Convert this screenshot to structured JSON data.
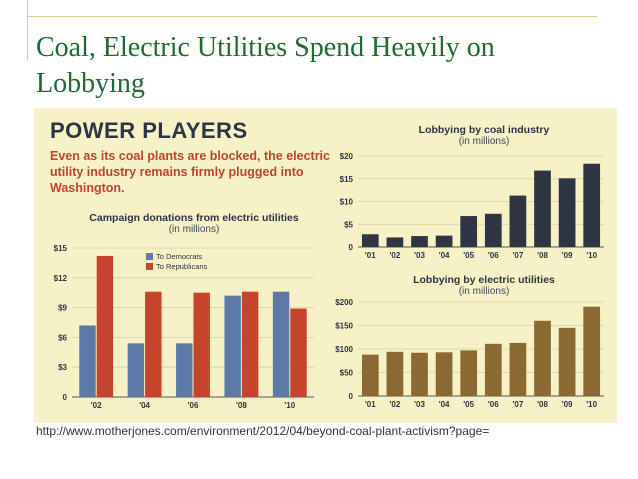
{
  "slide": {
    "title": "Coal, Electric Utilities Spend Heavily on Lobbying",
    "source_url": "http://www.motherjones.com/environment/2012/04/beyond-coal-plant-activism?page="
  },
  "infographic": {
    "headline": "POWER PLAYERS",
    "deck": "Even as its coal plants are blocked, the electric utility industry remains firmly plugged into Washington."
  },
  "colors": {
    "democrats": "#5d7aa6",
    "republicans": "#c7442c",
    "coal": "#2f3542",
    "utilities": "#8a6a32",
    "panel_bg": "#f6f1c6"
  },
  "chart_data": [
    {
      "type": "bar",
      "title": "Campaign donations from electric utilities",
      "subtitle": "(in millions)",
      "categories": [
        "'02",
        "'04",
        "'06",
        "'08",
        "'10"
      ],
      "series": [
        {
          "name": "To Democrats",
          "values": [
            7.2,
            5.4,
            5.4,
            10.2,
            10.6
          ]
        },
        {
          "name": "To Republicans",
          "values": [
            14.2,
            10.6,
            10.5,
            10.6,
            8.9
          ]
        }
      ],
      "yticks": [
        "0",
        "$3",
        "$6",
        "$9",
        "$12",
        "$15"
      ],
      "ylim": [
        0,
        15
      ],
      "legend": "top-center"
    },
    {
      "type": "bar",
      "title": "Lobbying by coal industry",
      "subtitle": "(in millions)",
      "categories": [
        "'01",
        "'02",
        "'03",
        "'04",
        "'05",
        "'06",
        "'07",
        "'08",
        "'09",
        "'10"
      ],
      "values": [
        2.8,
        2.1,
        2.4,
        2.5,
        6.8,
        7.3,
        11.3,
        16.8,
        15.1,
        18.3
      ],
      "yticks": [
        "0",
        "$5",
        "$10",
        "$15",
        "$20"
      ],
      "ylim": [
        0,
        20
      ]
    },
    {
      "type": "bar",
      "title": "Lobbying by electric utilities",
      "subtitle": "(in millions)",
      "categories": [
        "'01",
        "'02",
        "'03",
        "'04",
        "'05",
        "'06",
        "'07",
        "'08",
        "'09",
        "'10"
      ],
      "values": [
        88,
        94,
        92,
        93,
        97,
        111,
        113,
        160,
        145,
        190
      ],
      "yticks": [
        "0",
        "$50",
        "$100",
        "$150",
        "$200"
      ],
      "ylim": [
        0,
        200
      ]
    }
  ]
}
